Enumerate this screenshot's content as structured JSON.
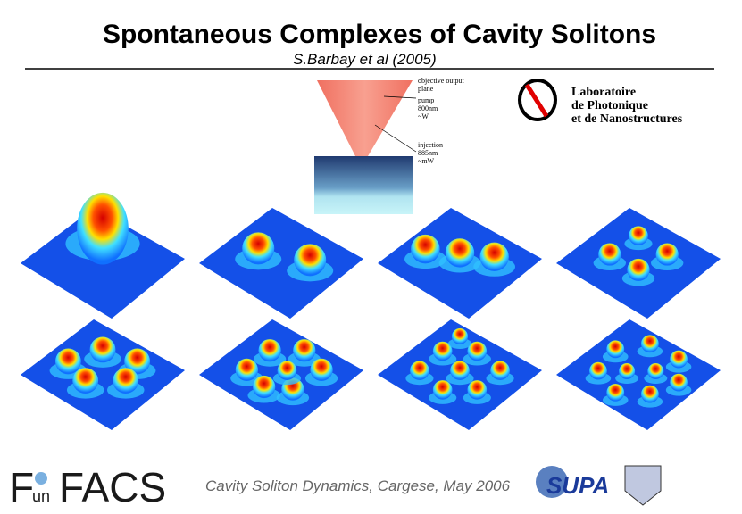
{
  "header": {
    "title": "Spontaneous Complexes of Cavity Solitons",
    "subtitle": "S.Barbay et al (2005)"
  },
  "diagram": {
    "labels": [
      [
        "objective output",
        "plane"
      ],
      [
        "pump",
        "800nm",
        "~W"
      ],
      [
        "injection",
        "885nm",
        "~mW"
      ]
    ]
  },
  "logos": {
    "lab": [
      "Laboratoire",
      "de Photonique",
      "et de Nanostructures"
    ],
    "funfacs": {
      "f": "F",
      "un": "un",
      "facs": "FACS"
    },
    "supa": "SUPA"
  },
  "footer": {
    "text": "Cavity Soliton Dynamics, Cargese, May 2006"
  }
}
